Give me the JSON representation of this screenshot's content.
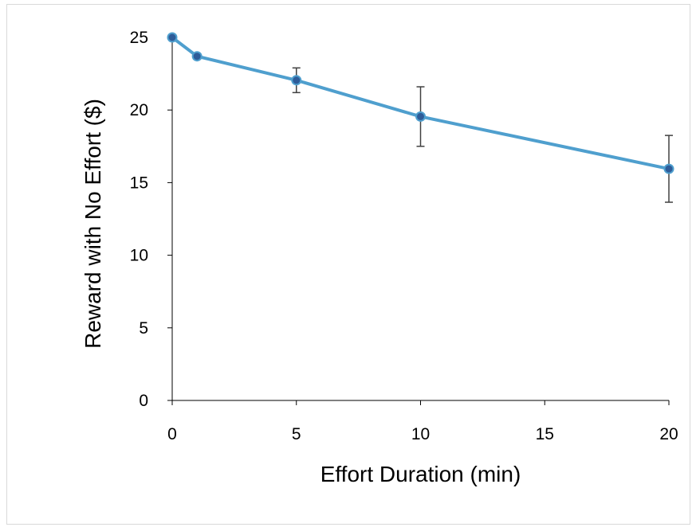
{
  "chart_data": {
    "type": "line",
    "title": "",
    "xlabel": "Effort Duration (min)",
    "ylabel": "Reward with No Effort ($)",
    "xlim": [
      0,
      20
    ],
    "ylim": [
      0,
      25
    ],
    "x_ticks": [
      0,
      5,
      10,
      15,
      20
    ],
    "y_ticks": [
      0,
      5,
      10,
      15,
      20,
      25
    ],
    "x_tick_labels": [
      "0",
      "5",
      "10",
      "15",
      "20"
    ],
    "y_tick_labels": [
      "0",
      "5",
      "10",
      "15",
      "20",
      "25"
    ],
    "grid": false,
    "legend": "none",
    "series": [
      {
        "x": [
          0,
          1,
          5,
          10,
          20
        ],
        "y": [
          25,
          23.7,
          22.05,
          19.55,
          15.95
        ],
        "error": [
          0,
          0,
          0.85,
          2.05,
          2.3
        ]
      }
    ],
    "colors": {
      "line": "#4f9fce",
      "marker_fill": "#2e5c99",
      "marker_edge": "#4f9fce",
      "error_bar": "#404040",
      "axis": "#000000",
      "frame_border": "#d9d9d9"
    }
  }
}
